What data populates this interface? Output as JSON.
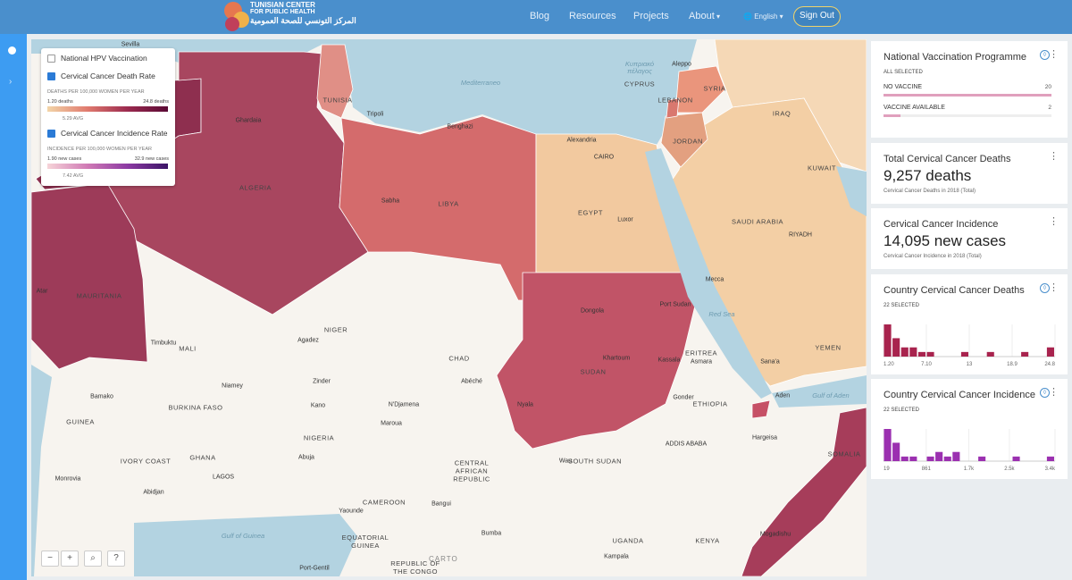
{
  "nav": {
    "logo_title": "TUNISIAN CENTER",
    "logo_sub": "FOR PUBLIC HEALTH",
    "logo_arabic": "المركز التونسي للصحة العمومية",
    "links": [
      "Blog",
      "Resources",
      "Projects",
      "About"
    ],
    "language": "English",
    "sign_out": "Sign Out"
  },
  "legend": {
    "layers": [
      {
        "label": "National HPV Vaccination",
        "checked": false
      },
      {
        "label": "Cervical Cancer Death Rate",
        "checked": true,
        "unit": "DEATHS PER 100,000 WOMEN PER YEAR",
        "min": "1.20 deaths",
        "max": "24.8 deaths",
        "avg": "5.29 AVG"
      },
      {
        "label": "Cervical Cancer Incidence Rate",
        "checked": true,
        "unit": "INCIDENCE PER 100,000 WOMEN PER YEAR",
        "min": "1.90 new cases",
        "max": "32.9 new cases",
        "avg": "7.42 AVG"
      }
    ]
  },
  "map": {
    "sea_labels": [
      "Mediterraneo",
      "Red Sea",
      "Gulf of Aden",
      "Gulf of Guinea",
      "Κυπριακό πέλαγος"
    ],
    "countries": [
      "ALGERIA",
      "LIBYA",
      "EGYPT",
      "SUDAN",
      "MAURITANIA",
      "MALI",
      "NIGER",
      "CHAD",
      "NIGERIA",
      "SAUDI ARABIA",
      "YEMEN",
      "ETHIOPIA",
      "ERITREA",
      "SOMALIA",
      "IRAQ",
      "SYRIA",
      "JORDAN",
      "LEBANON",
      "KUWAIT",
      "TUNISIA",
      "CYPRUS",
      "UGANDA",
      "KENYA",
      "CAMEROON",
      "CENTRAL AFRICAN REPUBLIC",
      "SOUTH SUDAN",
      "BURKINA FASO",
      "GUINEA",
      "IVORY COAST",
      "GHANA",
      "EQUATORIAL GUINEA",
      "REPUBLIC OF THE CONGO"
    ],
    "cities": [
      "Sevilla",
      "Tripoli",
      "Ghardaia",
      "Sabha",
      "Benghazi",
      "Alexandria",
      "CAIRO",
      "Luxor",
      "Aleppo",
      "RIYADH",
      "Mecca",
      "Port Sudan",
      "Dongola",
      "Khartoum",
      "Kassala",
      "Asmara",
      "Nyala",
      "Timbuktu",
      "Agadez",
      "Niamey",
      "Zinder",
      "Kano",
      "Abéché",
      "N'Djamena",
      "Maroua",
      "Bamako",
      "Abuja",
      "LAGOS",
      "Abidjan",
      "Monrovia",
      "Yaounde",
      "Bangui",
      "Bumba",
      "Kampala",
      "Mogadishu",
      "Aden",
      "Sana'a",
      "Hargeisa",
      "ADDIS ABABA",
      "Gonder",
      "Wau",
      "Atar",
      "Port-Gentil"
    ],
    "attribution": "CARTO"
  },
  "zoom": {
    "zoom_out": "−",
    "zoom_in": "+",
    "help": "?"
  },
  "panel": {
    "vaccination": {
      "title": "National Vaccination Programme",
      "selected": "ALL SELECTED",
      "categories": [
        {
          "name": "NO VACCINE",
          "count": 20
        },
        {
          "name": "VACCINE AVAILABLE",
          "count": 2
        }
      ]
    },
    "deaths_total": {
      "title": "Total Cervical Cancer Deaths",
      "value": "9,257 deaths",
      "caption": "Cervical Cancer Deaths in 2018 (Total)"
    },
    "incidence_total": {
      "title": "Cervical Cancer Incidence",
      "value": "14,095 new cases",
      "caption": "Cervical Cancer Incidence in 2018 (Total)"
    },
    "deaths_hist": {
      "title": "Country Cervical Cancer Deaths",
      "selected": "22 SELECTED",
      "color": "#a8234e",
      "xlim": [
        1.2,
        24.8
      ],
      "xticks": [
        {
          "value": 1.2,
          "label": "1.20"
        },
        {
          "value": 7.1,
          "label": "7.10"
        },
        13,
        18.9,
        24.8
      ],
      "counts": [
        7,
        4,
        2,
        2,
        1,
        1,
        0,
        0,
        0,
        1,
        0,
        0,
        1,
        0,
        0,
        0,
        1,
        0,
        0,
        2
      ]
    },
    "incidence_hist": {
      "title": "Country Cervical Cancer Incidence",
      "selected": "22 SELECTED",
      "color": "#9b30b0",
      "xlim": [
        19,
        3400
      ],
      "xticks": [
        19,
        861,
        {
          "value": 1700,
          "label": "1.7k"
        },
        {
          "value": 2500,
          "label": "2.5k"
        },
        {
          "value": 3400,
          "label": "3.4k"
        }
      ],
      "counts": [
        7,
        4,
        1,
        1,
        0,
        1,
        2,
        1,
        2,
        0,
        0,
        1,
        0,
        0,
        0,
        1,
        0,
        0,
        0,
        1
      ]
    }
  }
}
